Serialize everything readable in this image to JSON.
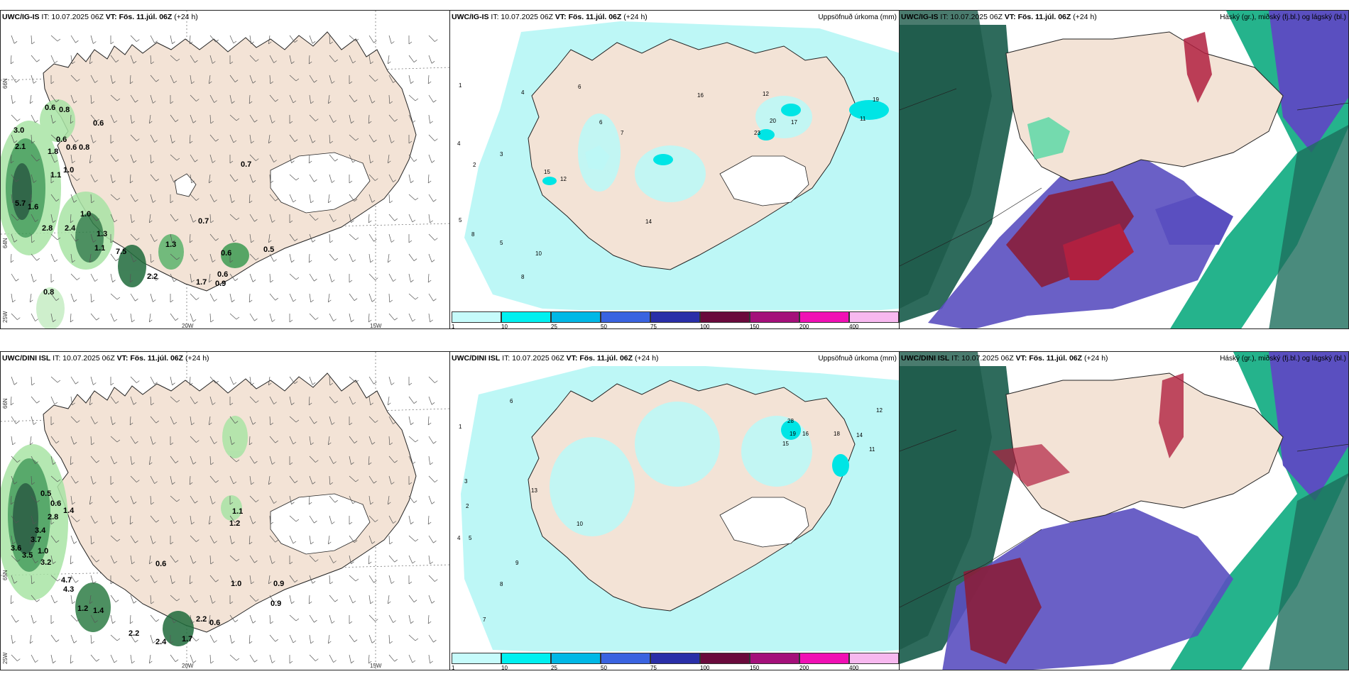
{
  "colors": {
    "land": "#f3e3d6",
    "water": "#ffffff",
    "precip_light": "#bdf7f6",
    "precip_mid": "#00e5e5",
    "cloud_high": "#b02040",
    "cloud_mid": "#5a4fc0",
    "cloud_low": "#1fa37a"
  },
  "rows": [
    {
      "model": "UWC/IG-IS",
      "it": "IT: 10.07.2025 06Z",
      "vt": "VT: Fös. 11.júl. 06Z",
      "lead": "(+24 h)",
      "wind_values": [
        "3.0",
        "2.1",
        "0.6",
        "0.8",
        "0.6",
        "0.6",
        "0.8",
        "1.8",
        "1.0",
        "1.1",
        "5.7",
        "1.6",
        "1.0",
        "2.8",
        "2.4",
        "1.3",
        "1.1",
        "7.5",
        "0.6",
        "1.3",
        "2.2",
        "0.7",
        "0.7",
        "0.5",
        "0.6",
        "0.6",
        "0.9",
        "1.7",
        "0.8"
      ],
      "precip_values": [
        "1",
        "2",
        "3",
        "4",
        "4",
        "5",
        "5",
        "6",
        "6",
        "7",
        "8",
        "8",
        "10",
        "12",
        "15",
        "16",
        "17",
        "20",
        "23",
        "12",
        "14",
        "19",
        "11"
      ],
      "cloud_title": "Háský (gr.), miðský (fj.bl.) og lágský (bl.)"
    },
    {
      "model": "UWC/DINI ISL",
      "it": "IT: 10.07.2025 06Z",
      "vt": "VT: Fös. 11.júl. 06Z",
      "lead": "(+24 h)",
      "wind_values": [
        "0.5",
        "0.6",
        "1.4",
        "2.8",
        "3.4",
        "3.7",
        "3.6",
        "3.5",
        "1.0",
        "3.2",
        "4.7",
        "4.3",
        "1.2",
        "1.4",
        "2.2",
        "2.4",
        "1.7",
        "2.2",
        "0.6",
        "0.6",
        "1.0",
        "0.9",
        "0.9",
        "1.1",
        "1.2"
      ],
      "precip_values": [
        "1",
        "2",
        "3",
        "4",
        "5",
        "6",
        "7",
        "8",
        "9",
        "10",
        "11",
        "12",
        "13",
        "14",
        "15",
        "16",
        "18",
        "19",
        "28"
      ],
      "cloud_title": "Háský (gr.), miðský (fj.bl.) og lágský (bl.)"
    }
  ],
  "precip_title": "Uppsöfnuð úrkoma (mm)",
  "axis_labels": {
    "lat_66": "66N",
    "lat_64": "64N",
    "lat_65": "65N",
    "lon_25": "25W",
    "lon_20": "20W",
    "lon_15": "15W"
  },
  "legend": {
    "ticks": [
      "1",
      "10",
      "25",
      "50",
      "75",
      "100",
      "150",
      "200",
      "400"
    ],
    "colors": [
      "#c6fbfb",
      "#00f0f0",
      "#00b8e6",
      "#3a63e0",
      "#2a2fa8",
      "#6a0a3c",
      "#a4107a",
      "#f010b4",
      "#f7b8ef"
    ]
  }
}
